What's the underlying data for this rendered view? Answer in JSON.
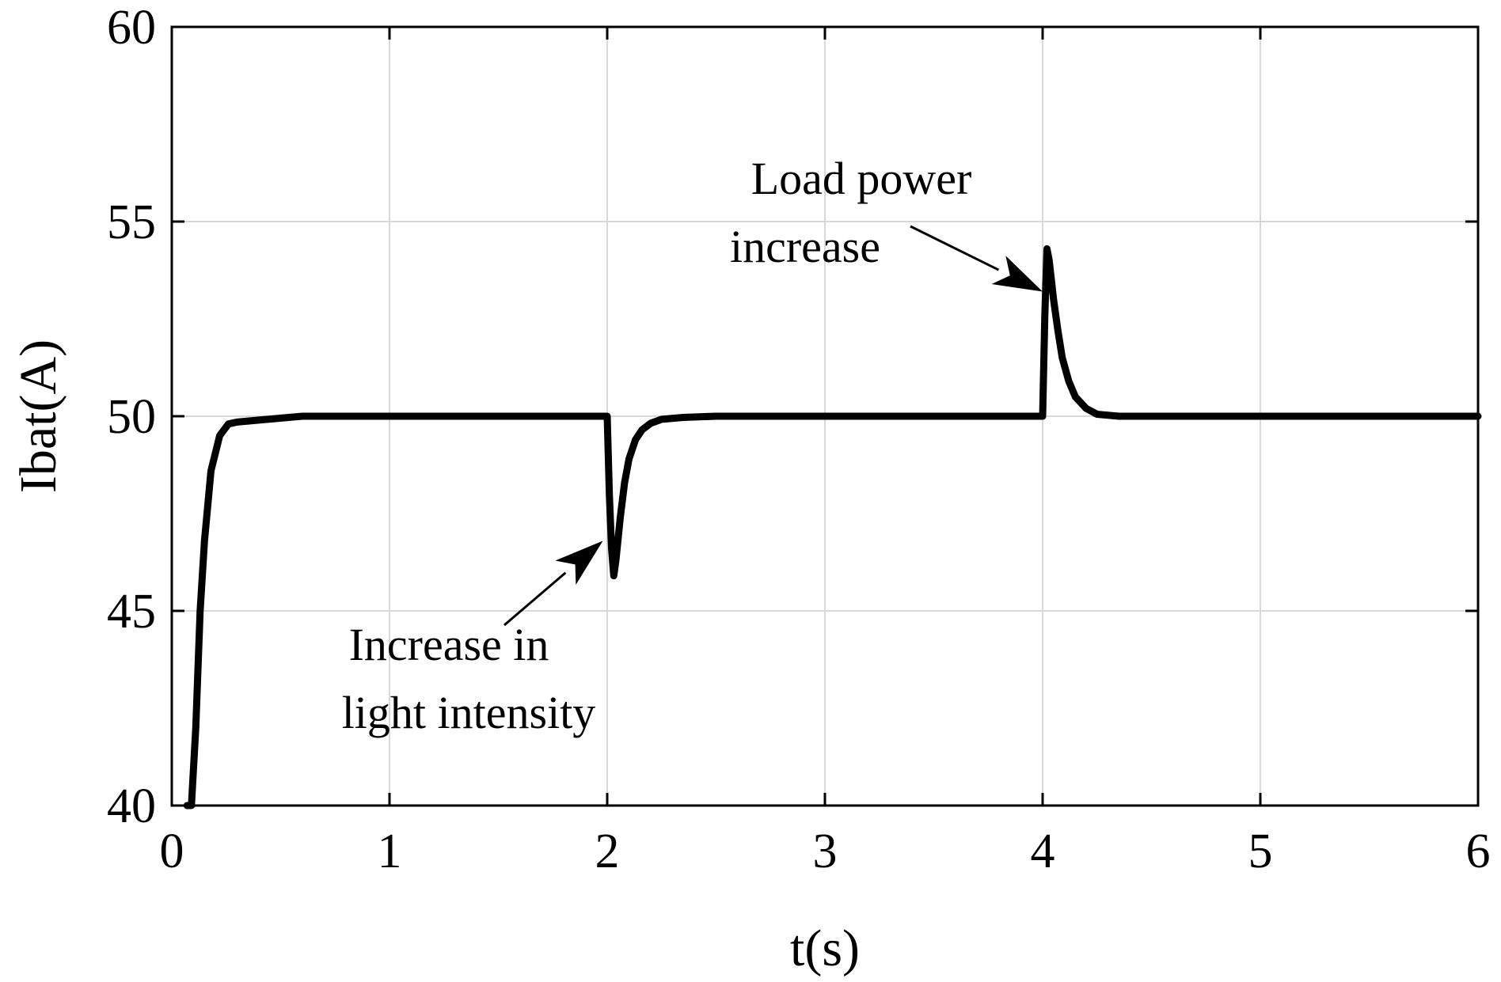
{
  "chart_data": {
    "type": "line",
    "title": "",
    "xlabel": "t(s)",
    "ylabel": "Ibat(A)",
    "xlim": [
      0,
      6
    ],
    "ylim": [
      40,
      60
    ],
    "xticks": [
      0,
      1,
      2,
      3,
      4,
      5,
      6
    ],
    "yticks": [
      40,
      45,
      50,
      55,
      60
    ],
    "xtick_labels": [
      "0",
      "1",
      "2",
      "3",
      "4",
      "5",
      "6"
    ],
    "ytick_labels": [
      "40",
      "45",
      "50",
      "55",
      "60"
    ],
    "grid": true,
    "series": [
      {
        "name": "Ibat",
        "color": "#000000",
        "x": [
          0.07,
          0.09,
          0.11,
          0.13,
          0.15,
          0.18,
          0.22,
          0.26,
          0.3,
          0.4,
          0.6,
          1.0,
          1.5,
          1.99,
          2.0,
          2.01,
          2.02,
          2.03,
          2.04,
          2.06,
          2.08,
          2.1,
          2.13,
          2.16,
          2.2,
          2.25,
          2.35,
          2.5,
          3.0,
          3.5,
          3.99,
          4.0,
          4.01,
          4.02,
          4.03,
          4.05,
          4.07,
          4.09,
          4.12,
          4.15,
          4.2,
          4.25,
          4.35,
          4.5,
          5.0,
          5.5,
          6.0
        ],
        "y": [
          39.8,
          40.0,
          42.0,
          45.0,
          46.8,
          48.6,
          49.5,
          49.8,
          49.85,
          49.9,
          50.0,
          50.0,
          50.0,
          50.0,
          50.0,
          48.0,
          46.6,
          45.9,
          46.3,
          47.4,
          48.3,
          48.9,
          49.4,
          49.65,
          49.82,
          49.92,
          49.97,
          50.0,
          50.0,
          50.0,
          50.0,
          50.0,
          52.6,
          54.3,
          54.0,
          53.0,
          52.2,
          51.5,
          50.9,
          50.5,
          50.2,
          50.05,
          50.0,
          50.0,
          50.0,
          50.0,
          50.0
        ]
      }
    ],
    "annotations": [
      {
        "lines": [
          "Load power",
          "increase"
        ],
        "arrow_to": [
          4.0,
          53.2
        ]
      },
      {
        "lines": [
          "Increase in",
          "light intensity"
        ],
        "arrow_to": [
          1.98,
          46.8
        ]
      }
    ]
  }
}
